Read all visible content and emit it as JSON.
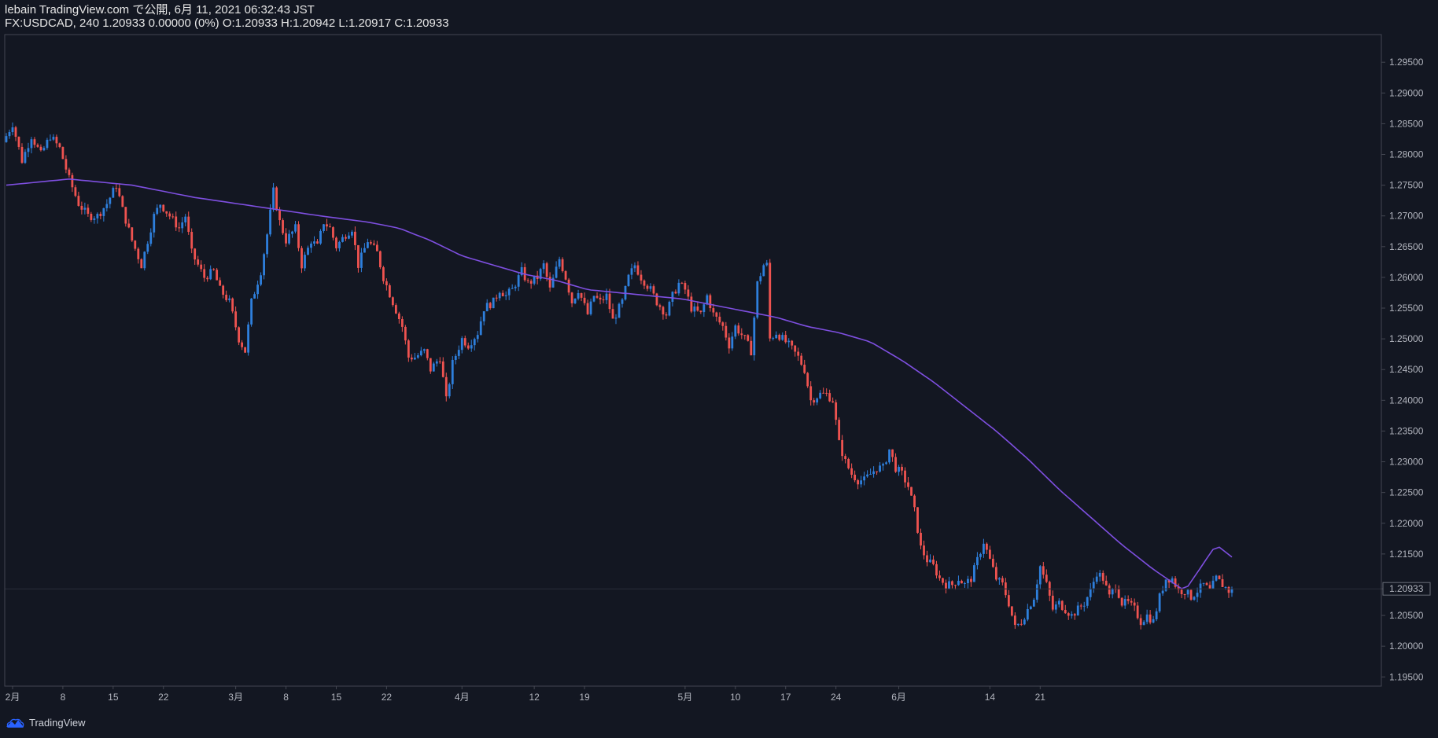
{
  "header": {
    "line1": "lebain TradingView.com で公開, 6月 11, 2021 06:32:43 JST",
    "line2": "FX:USDCAD, 240 1.20933 0.00000 (0%) O:1.20933 H:1.20942 L:1.20917 C:1.20933"
  },
  "footer": {
    "brand": "TradingView",
    "icon": "tradingview-cloud-icon"
  },
  "colors": {
    "background": "#131722",
    "up": "#2e7fdc",
    "down": "#ef5350",
    "ma": "#7e4fe0",
    "grid": "#2a2e39",
    "axis_text": "#b2b5be"
  },
  "chart_data": {
    "type": "candlestick",
    "symbol": "FX:USDCAD",
    "interval": "240",
    "last_price": "1.20933",
    "y_ticks": [
      "1.29500",
      "1.29000",
      "1.28500",
      "1.28000",
      "1.27500",
      "1.27000",
      "1.26500",
      "1.26000",
      "1.25500",
      "1.25000",
      "1.24500",
      "1.24000",
      "1.23500",
      "1.23000",
      "1.22500",
      "1.22000",
      "1.21500",
      "1.20933",
      "1.20500",
      "1.20000",
      "1.19500"
    ],
    "ylim": [
      1.1935,
      1.2995
    ],
    "x_ticks": [
      "2月",
      "8",
      "15",
      "22",
      "3月",
      "8",
      "15",
      "22",
      "4月",
      "12",
      "19",
      "5月",
      "10",
      "17",
      "24",
      "6月",
      "14",
      "21"
    ],
    "price_path": [
      [
        0,
        1.282
      ],
      [
        3,
        1.285
      ],
      [
        6,
        1.279
      ],
      [
        9,
        1.283
      ],
      [
        12,
        1.28
      ],
      [
        15,
        1.283
      ],
      [
        18,
        1.281
      ],
      [
        21,
        1.276
      ],
      [
        24,
        1.272
      ],
      [
        27,
        1.27
      ],
      [
        30,
        1.27
      ],
      [
        33,
        1.272
      ],
      [
        36,
        1.275
      ],
      [
        38,
        1.271
      ],
      [
        41,
        1.266
      ],
      [
        44,
        1.262
      ],
      [
        46,
        1.266
      ],
      [
        48,
        1.27
      ],
      [
        50,
        1.272
      ],
      [
        53,
        1.27
      ],
      [
        56,
        1.268
      ],
      [
        58,
        1.27
      ],
      [
        60,
        1.264
      ],
      [
        62,
        1.262
      ],
      [
        64,
        1.26
      ],
      [
        67,
        1.261
      ],
      [
        69,
        1.258
      ],
      [
        72,
        1.256
      ],
      [
        75,
        1.25
      ],
      [
        77,
        1.248
      ],
      [
        79,
        1.256
      ],
      [
        82,
        1.261
      ],
      [
        84,
        1.267
      ],
      [
        86,
        1.274
      ],
      [
        88,
        1.269
      ],
      [
        90,
        1.266
      ],
      [
        93,
        1.268
      ],
      [
        95,
        1.262
      ],
      [
        98,
        1.266
      ],
      [
        100,
        1.265
      ],
      [
        102,
        1.269
      ],
      [
        104,
        1.268
      ],
      [
        106,
        1.265
      ],
      [
        109,
        1.267
      ],
      [
        111,
        1.268
      ],
      [
        113,
        1.262
      ],
      [
        116,
        1.266
      ],
      [
        119,
        1.264
      ],
      [
        121,
        1.26
      ],
      [
        124,
        1.256
      ],
      [
        127,
        1.252
      ],
      [
        129,
        1.247
      ],
      [
        131,
        1.247
      ],
      [
        134,
        1.248
      ],
      [
        136,
        1.245
      ],
      [
        139,
        1.247
      ],
      [
        141,
        1.24
      ],
      [
        143,
        1.246
      ],
      [
        146,
        1.25
      ],
      [
        148,
        1.249
      ],
      [
        151,
        1.251
      ],
      [
        153,
        1.255
      ],
      [
        156,
        1.256
      ],
      [
        158,
        1.258
      ],
      [
        160,
        1.257
      ],
      [
        162,
        1.258
      ],
      [
        165,
        1.261
      ],
      [
        167,
        1.259
      ],
      [
        170,
        1.26
      ],
      [
        172,
        1.262
      ],
      [
        174,
        1.258
      ],
      [
        177,
        1.263
      ],
      [
        179,
        1.26
      ],
      [
        181,
        1.256
      ],
      [
        183,
        1.258
      ],
      [
        186,
        1.254
      ],
      [
        188,
        1.257
      ],
      [
        190,
        1.256
      ],
      [
        192,
        1.257
      ],
      [
        194,
        1.253
      ],
      [
        197,
        1.256
      ],
      [
        199,
        1.26
      ],
      [
        201,
        1.262
      ],
      [
        203,
        1.26
      ],
      [
        206,
        1.258
      ],
      [
        208,
        1.256
      ],
      [
        211,
        1.254
      ],
      [
        213,
        1.257
      ],
      [
        215,
        1.259
      ],
      [
        217,
        1.258
      ],
      [
        219,
        1.255
      ],
      [
        222,
        1.254
      ],
      [
        224,
        1.257
      ],
      [
        226,
        1.254
      ],
      [
        229,
        1.252
      ],
      [
        231,
        1.249
      ],
      [
        233,
        1.252
      ],
      [
        236,
        1.25
      ],
      [
        238,
        1.248
      ],
      [
        240,
        1.259
      ],
      [
        242,
        1.262
      ],
      [
        243,
        1.262
      ],
      [
        244,
        1.25
      ],
      [
        246,
        1.251
      ],
      [
        248,
        1.25
      ],
      [
        250,
        1.249
      ],
      [
        253,
        1.247
      ],
      [
        255,
        1.245
      ],
      [
        257,
        1.24
      ],
      [
        260,
        1.241
      ],
      [
        262,
        1.241
      ],
      [
        264,
        1.24
      ],
      [
        266,
        1.233
      ],
      [
        268,
        1.23
      ],
      [
        270,
        1.228
      ],
      [
        272,
        1.227
      ],
      [
        274,
        1.227
      ],
      [
        276,
        1.228
      ],
      [
        278,
        1.229
      ],
      [
        280,
        1.229
      ],
      [
        282,
        1.232
      ],
      [
        284,
        1.229
      ],
      [
        286,
        1.228
      ],
      [
        288,
        1.226
      ],
      [
        290,
        1.222
      ],
      [
        292,
        1.216
      ],
      [
        294,
        1.214
      ],
      [
        296,
        1.213
      ],
      [
        298,
        1.211
      ],
      [
        300,
        1.21
      ],
      [
        302,
        1.21
      ],
      [
        304,
        1.211
      ],
      [
        306,
        1.21
      ],
      [
        308,
        1.211
      ],
      [
        310,
        1.214
      ],
      [
        312,
        1.217
      ],
      [
        314,
        1.214
      ],
      [
        316,
        1.211
      ],
      [
        318,
        1.21
      ],
      [
        320,
        1.207
      ],
      [
        322,
        1.203
      ],
      [
        324,
        1.204
      ],
      [
        326,
        1.206
      ],
      [
        328,
        1.208
      ],
      [
        330,
        1.213
      ],
      [
        332,
        1.21
      ],
      [
        334,
        1.206
      ],
      [
        336,
        1.207
      ],
      [
        338,
        1.206
      ],
      [
        340,
        1.205
      ],
      [
        342,
        1.206
      ],
      [
        344,
        1.207
      ],
      [
        346,
        1.209
      ],
      [
        348,
        1.212
      ],
      [
        350,
        1.211
      ],
      [
        352,
        1.208
      ],
      [
        354,
        1.21
      ],
      [
        356,
        1.207
      ],
      [
        358,
        1.207
      ],
      [
        360,
        1.206
      ],
      [
        362,
        1.204
      ],
      [
        364,
        1.205
      ],
      [
        366,
        1.204
      ],
      [
        368,
        1.208
      ],
      [
        370,
        1.211
      ],
      [
        372,
        1.211
      ],
      [
        374,
        1.209
      ],
      [
        376,
        1.209
      ],
      [
        378,
        1.208
      ],
      [
        380,
        1.209
      ],
      [
        382,
        1.21
      ],
      [
        384,
        1.209
      ],
      [
        386,
        1.211
      ],
      [
        388,
        1.21
      ],
      [
        390,
        1.209
      ]
    ],
    "ma_path": [
      [
        0,
        1.275
      ],
      [
        20,
        1.276
      ],
      [
        40,
        1.275
      ],
      [
        60,
        1.273
      ],
      [
        80,
        1.2715
      ],
      [
        100,
        1.27
      ],
      [
        115,
        1.269
      ],
      [
        125,
        1.268
      ],
      [
        135,
        1.266
      ],
      [
        145,
        1.2635
      ],
      [
        155,
        1.262
      ],
      [
        165,
        1.2605
      ],
      [
        175,
        1.2595
      ],
      [
        185,
        1.258
      ],
      [
        195,
        1.2575
      ],
      [
        205,
        1.257
      ],
      [
        215,
        1.2565
      ],
      [
        225,
        1.2555
      ],
      [
        235,
        1.2545
      ],
      [
        245,
        1.2535
      ],
      [
        255,
        1.252
      ],
      [
        265,
        1.251
      ],
      [
        275,
        1.2495
      ],
      [
        285,
        1.2465
      ],
      [
        295,
        1.243
      ],
      [
        305,
        1.239
      ],
      [
        315,
        1.235
      ],
      [
        325,
        1.2305
      ],
      [
        335,
        1.2255
      ],
      [
        345,
        1.221
      ],
      [
        355,
        1.2165
      ],
      [
        365,
        1.2125
      ],
      [
        375,
        1.209
      ],
      [
        385,
        1.2165
      ],
      [
        390,
        1.2145
      ]
    ]
  }
}
